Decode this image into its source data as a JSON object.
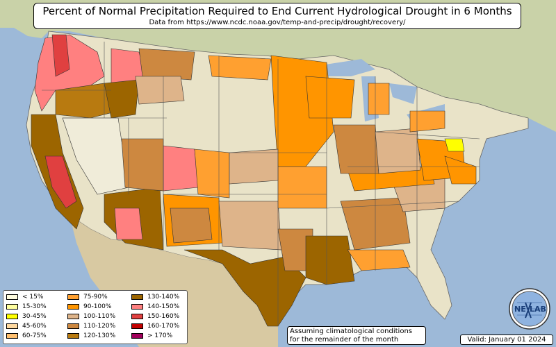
{
  "title": "Percent of Normal Precipitation Required to End Current Hydrological Drought in 6 Months",
  "subtitle": "Data from https://www.ncdc.noaa.gov/temp-and-precip/drought/recovery/",
  "note_line1": "Assuming climatological conditions",
  "note_line2": "for the remainder of the month",
  "valid": "Valid: January 01 2024",
  "logo_text_left": "NE",
  "logo_text_right": "LAB",
  "legend": [
    {
      "label": "< 15%",
      "color": "#fffde0"
    },
    {
      "label": "15-30%",
      "color": "#ffffa0"
    },
    {
      "label": "30-45%",
      "color": "#ffff00"
    },
    {
      "label": "45-60%",
      "color": "#ffd9a0"
    },
    {
      "label": "60-75%",
      "color": "#ffc070"
    },
    {
      "label": "75-90%",
      "color": "#ffa030"
    },
    {
      "label": "90-100%",
      "color": "#ff9500"
    },
    {
      "label": "100-110%",
      "color": "#deb48a"
    },
    {
      "label": "110-120%",
      "color": "#cd8840"
    },
    {
      "label": "120-130%",
      "color": "#b87a10"
    },
    {
      "label": "130-140%",
      "color": "#9c6500"
    },
    {
      "label": "140-150%",
      "color": "#ff8080"
    },
    {
      "label": "150-160%",
      "color": "#e04040"
    },
    {
      "label": "160-170%",
      "color": "#c00000"
    },
    {
      "label": "> 170%",
      "color": "#a0005a"
    }
  ]
}
